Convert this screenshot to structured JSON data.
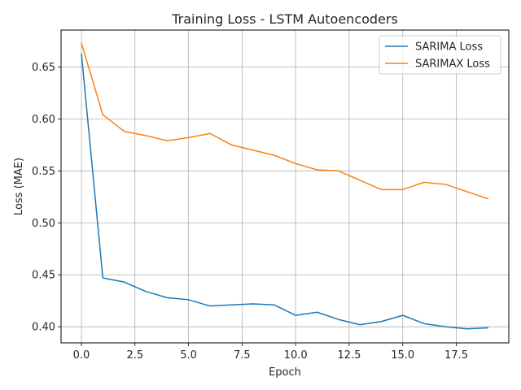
{
  "chart_data": {
    "type": "line",
    "title": "Training Loss - LSTM Autoencoders",
    "xlabel": "Epoch",
    "ylabel": "Loss (MAE)",
    "xlim": [
      -0.95,
      19.95
    ],
    "ylim": [
      0.3845,
      0.6855
    ],
    "xticks": [
      0.0,
      2.5,
      5.0,
      7.5,
      10.0,
      12.5,
      15.0,
      17.5
    ],
    "xtick_labels": [
      "0.0",
      "2.5",
      "5.0",
      "7.5",
      "10.0",
      "12.5",
      "15.0",
      "17.5"
    ],
    "yticks": [
      0.4,
      0.45,
      0.5,
      0.55,
      0.6,
      0.65
    ],
    "ytick_labels": [
      "0.40",
      "0.45",
      "0.50",
      "0.55",
      "0.60",
      "0.65"
    ],
    "grid": true,
    "legend_position": "top-right",
    "x": [
      0,
      1,
      2,
      3,
      4,
      5,
      6,
      7,
      8,
      9,
      10,
      11,
      12,
      13,
      14,
      15,
      16,
      17,
      18,
      19
    ],
    "series": [
      {
        "name": "SARIMA Loss",
        "color": "#1f77b4",
        "values": [
          0.663,
          0.447,
          0.443,
          0.434,
          0.428,
          0.426,
          0.42,
          0.421,
          0.422,
          0.421,
          0.411,
          0.414,
          0.407,
          0.402,
          0.405,
          0.411,
          0.403,
          0.4,
          0.398,
          0.399
        ]
      },
      {
        "name": "SARIMAX Loss",
        "color": "#ff7f0e",
        "values": [
          0.673,
          0.604,
          0.588,
          0.584,
          0.579,
          0.582,
          0.586,
          0.575,
          0.57,
          0.565,
          0.557,
          0.551,
          0.55,
          0.541,
          0.532,
          0.532,
          0.539,
          0.537,
          0.53,
          0.523
        ]
      }
    ]
  }
}
